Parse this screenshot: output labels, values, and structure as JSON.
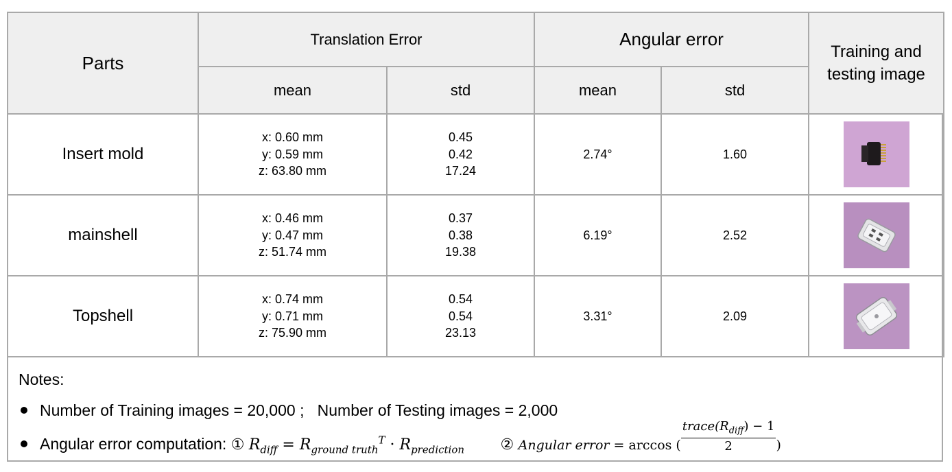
{
  "table": {
    "header": {
      "parts": "Parts",
      "translation_error": "Translation Error",
      "angular_error": "Angular error",
      "training_testing_line1": "Training and",
      "training_testing_line2": "testing image",
      "mean": "mean",
      "std": "std"
    },
    "rows": [
      {
        "part": "Insert mold",
        "trans_mean": [
          "x: 0.60 mm",
          "y: 0.59 mm",
          "z: 63.80 mm"
        ],
        "trans_std": [
          "0.45",
          "0.42",
          "17.24"
        ],
        "ang_mean": "2.74°",
        "ang_std": "1.60",
        "image_icon": "insert-mold-thumbnail",
        "image_bg": "#cfa5d3"
      },
      {
        "part": "mainshell",
        "trans_mean": [
          "x: 0.46 mm",
          "y: 0.47 mm",
          "z: 51.74 mm"
        ],
        "trans_std": [
          "0.37",
          "0.38",
          "19.38"
        ],
        "ang_mean": "6.19°",
        "ang_std": "2.52",
        "image_icon": "mainshell-thumbnail",
        "image_bg": "#b88fbf"
      },
      {
        "part": "Topshell",
        "trans_mean": [
          "x: 0.74 mm",
          "y: 0.71 mm",
          "z: 75.90 mm"
        ],
        "trans_std": [
          "0.54",
          "0.54",
          "23.13"
        ],
        "ang_mean": "3.31°",
        "ang_std": "2.09",
        "image_icon": "topshell-thumbnail",
        "image_bg": "#bb93c2"
      }
    ]
  },
  "notes": {
    "title": "Notes:",
    "bullet1": "Number of Training images = 20,000 ;   Number of Testing images = 2,000",
    "bullet2_prefix": "Angular error computation:",
    "circle1": "①",
    "circle2": "②",
    "formula1_lhs": "R",
    "formula1_lhs_sub": "diff",
    "formula1_eq": " = ",
    "formula1_r1": "R",
    "formula1_r1_sub": "ground truth",
    "formula1_sup": "T",
    "formula1_dot": " · ",
    "formula1_r2": "R",
    "formula1_r2_sub": "prediction",
    "formula2_lhs": "Angular error",
    "formula2_eq": " = ",
    "formula2_func": "arccos (",
    "formula2_num_a": "trace(R",
    "formula2_num_sub": "diff",
    "formula2_num_b": ") − 1",
    "formula2_den": "2",
    "formula2_close": ")"
  },
  "colors": {
    "border": "#a9a9a9",
    "header_bg": "#efefef"
  }
}
